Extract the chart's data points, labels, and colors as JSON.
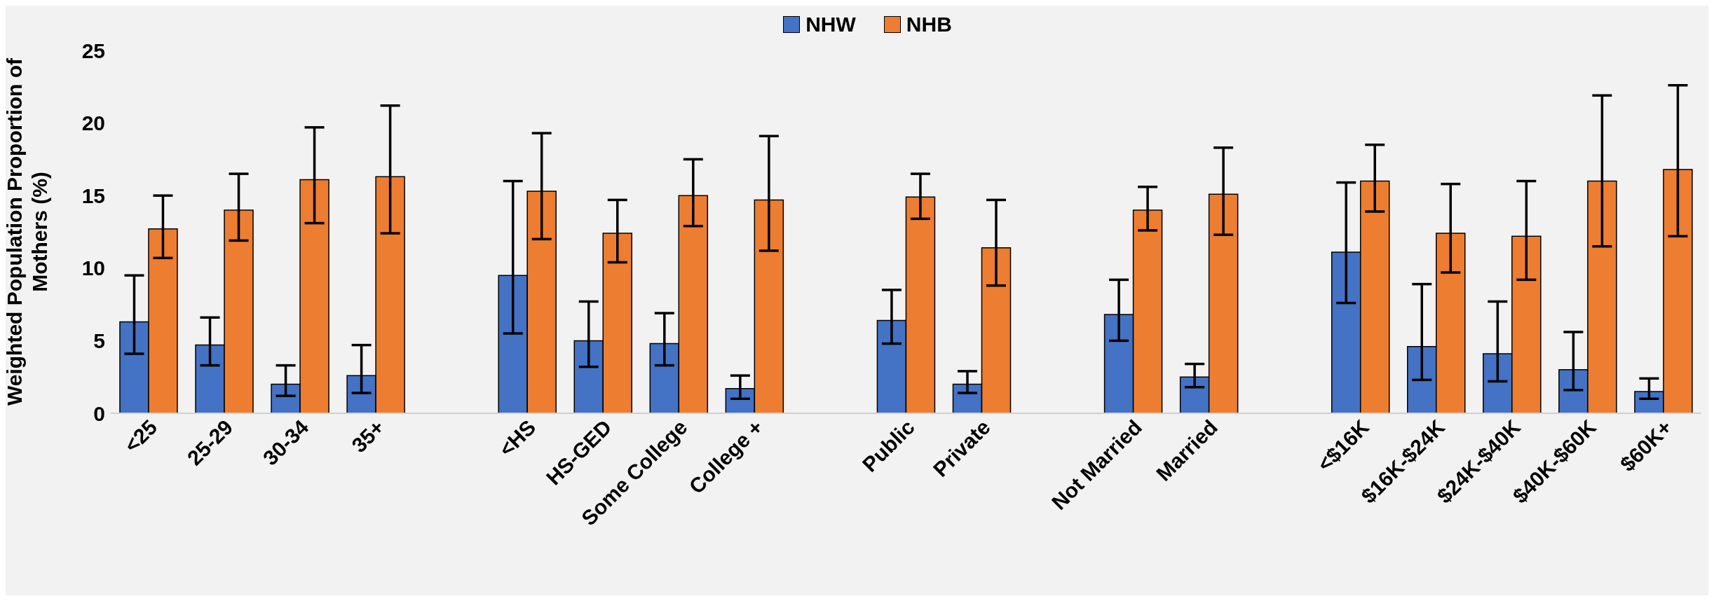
{
  "chart_data": {
    "type": "bar",
    "ylabel": "Weighted Population Proportion of Mothers (%)",
    "categories": [
      "<25",
      "25-29",
      "30-34",
      "35+",
      null,
      "<HS",
      "HS-GED",
      "Some College",
      "College +",
      null,
      "Public",
      "Private",
      null,
      "Not Married",
      "Married",
      null,
      "<$16K",
      "$16K-$24K",
      "$24K-$40K",
      "$40K-$60K",
      "$60K+"
    ],
    "series": [
      {
        "name": "NHW",
        "color": "#4472c4",
        "values": [
          6.3,
          4.7,
          2.0,
          2.6,
          null,
          9.5,
          5.0,
          4.8,
          1.7,
          null,
          6.4,
          2.0,
          null,
          6.8,
          2.5,
          null,
          11.1,
          4.6,
          4.1,
          3.0,
          1.5
        ],
        "errors": [
          [
            4.1,
            9.5
          ],
          [
            3.3,
            6.6
          ],
          [
            1.2,
            3.3
          ],
          [
            1.4,
            4.7
          ],
          null,
          [
            5.5,
            16.0
          ],
          [
            3.2,
            7.7
          ],
          [
            3.3,
            6.9
          ],
          [
            1.0,
            2.6
          ],
          null,
          [
            4.8,
            8.5
          ],
          [
            1.4,
            2.9
          ],
          null,
          [
            5.0,
            9.2
          ],
          [
            1.8,
            3.4
          ],
          null,
          [
            7.6,
            15.9
          ],
          [
            2.3,
            8.9
          ],
          [
            2.2,
            7.7
          ],
          [
            1.6,
            5.6
          ],
          [
            1.0,
            2.4
          ]
        ]
      },
      {
        "name": "NHB",
        "color": "#ed7d31",
        "values": [
          12.7,
          14.0,
          16.1,
          16.3,
          null,
          15.3,
          12.4,
          15.0,
          14.7,
          null,
          14.9,
          11.4,
          null,
          14.0,
          15.1,
          null,
          16.0,
          12.4,
          12.2,
          16.0,
          16.8
        ],
        "errors": [
          [
            10.7,
            15.0
          ],
          [
            11.9,
            16.5
          ],
          [
            13.1,
            19.7
          ],
          [
            12.4,
            21.2
          ],
          null,
          [
            12.0,
            19.3
          ],
          [
            10.4,
            14.7
          ],
          [
            12.9,
            17.5
          ],
          [
            11.2,
            19.1
          ],
          null,
          [
            13.4,
            16.5
          ],
          [
            8.8,
            14.7
          ],
          null,
          [
            12.6,
            15.6
          ],
          [
            12.3,
            18.3
          ],
          null,
          [
            13.9,
            18.5
          ],
          [
            9.7,
            15.8
          ],
          [
            9.2,
            16.0
          ],
          [
            11.5,
            21.9
          ],
          [
            12.2,
            22.6
          ]
        ]
      }
    ],
    "ylim": [
      0,
      25
    ],
    "yticks": [
      0,
      5,
      10,
      15,
      20,
      25
    ],
    "grid": false,
    "legend": "top"
  }
}
